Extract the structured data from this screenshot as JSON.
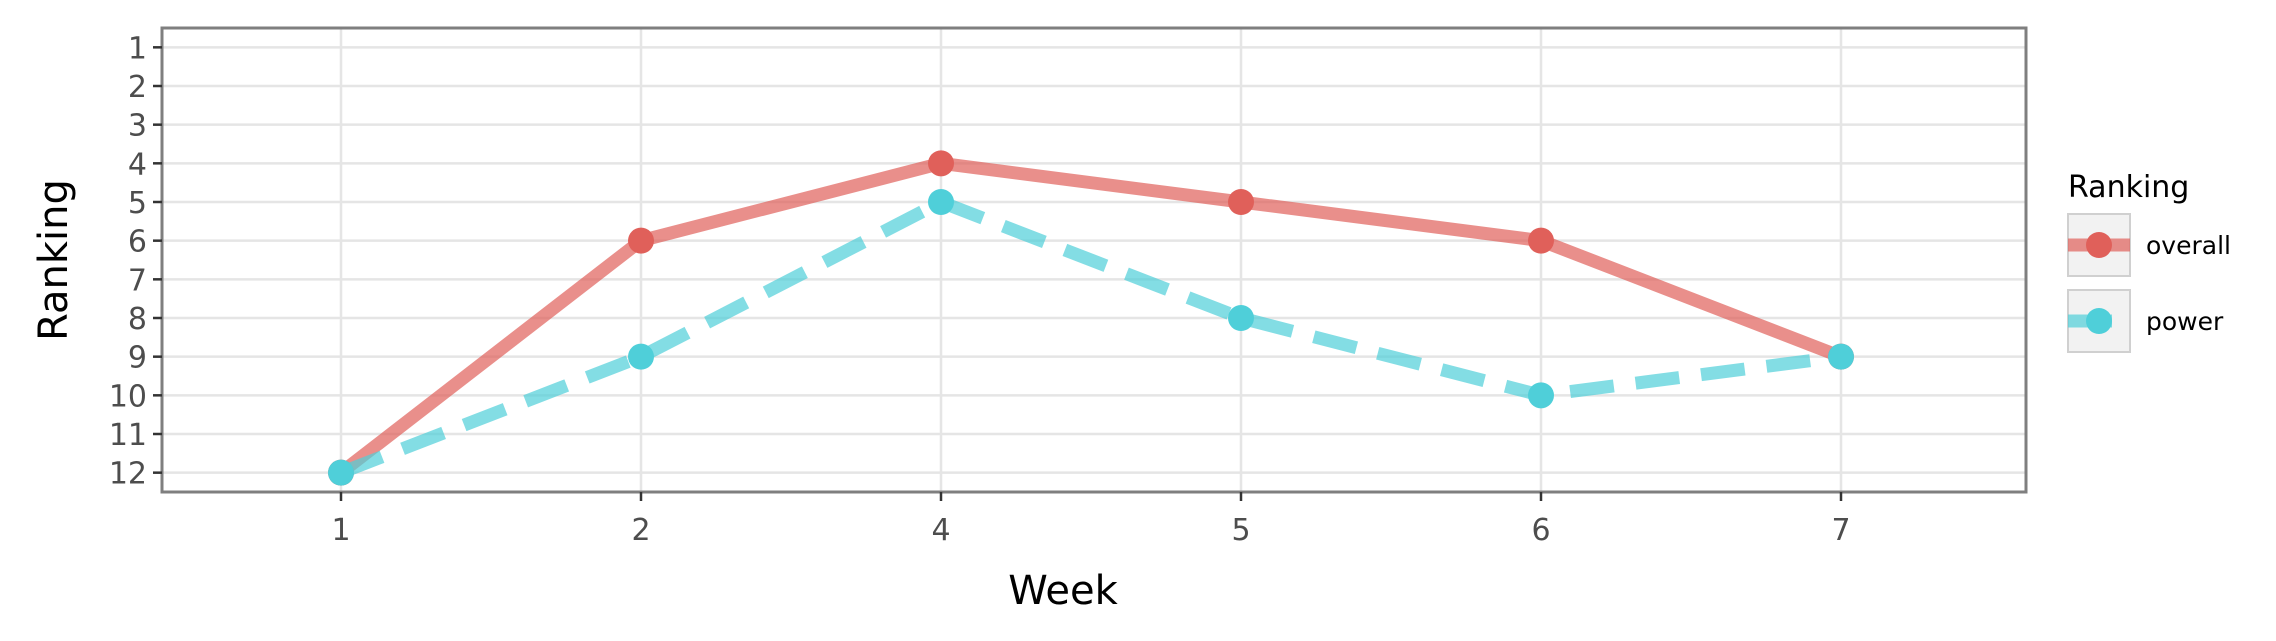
{
  "chart_data": {
    "type": "line",
    "categories": [
      "1",
      "2",
      "4",
      "5",
      "6",
      "7"
    ],
    "xlabel": "Week",
    "ylabel": "Ranking",
    "y_ticks": [
      1,
      2,
      3,
      4,
      5,
      6,
      7,
      8,
      9,
      10,
      11,
      12
    ],
    "y_reversed": true,
    "ylim": [
      12.5,
      0.5
    ],
    "grid": true,
    "legend": {
      "title": "Ranking",
      "placement": "right"
    },
    "series": [
      {
        "name": "overall",
        "values": [
          12,
          6,
          4,
          5,
          6,
          9
        ],
        "color": "#e0605a",
        "line_style": "solid"
      },
      {
        "name": "power",
        "values": [
          12,
          9,
          5,
          8,
          10,
          9
        ],
        "color": "#4fcfd9",
        "line_style": "dashed"
      }
    ]
  }
}
